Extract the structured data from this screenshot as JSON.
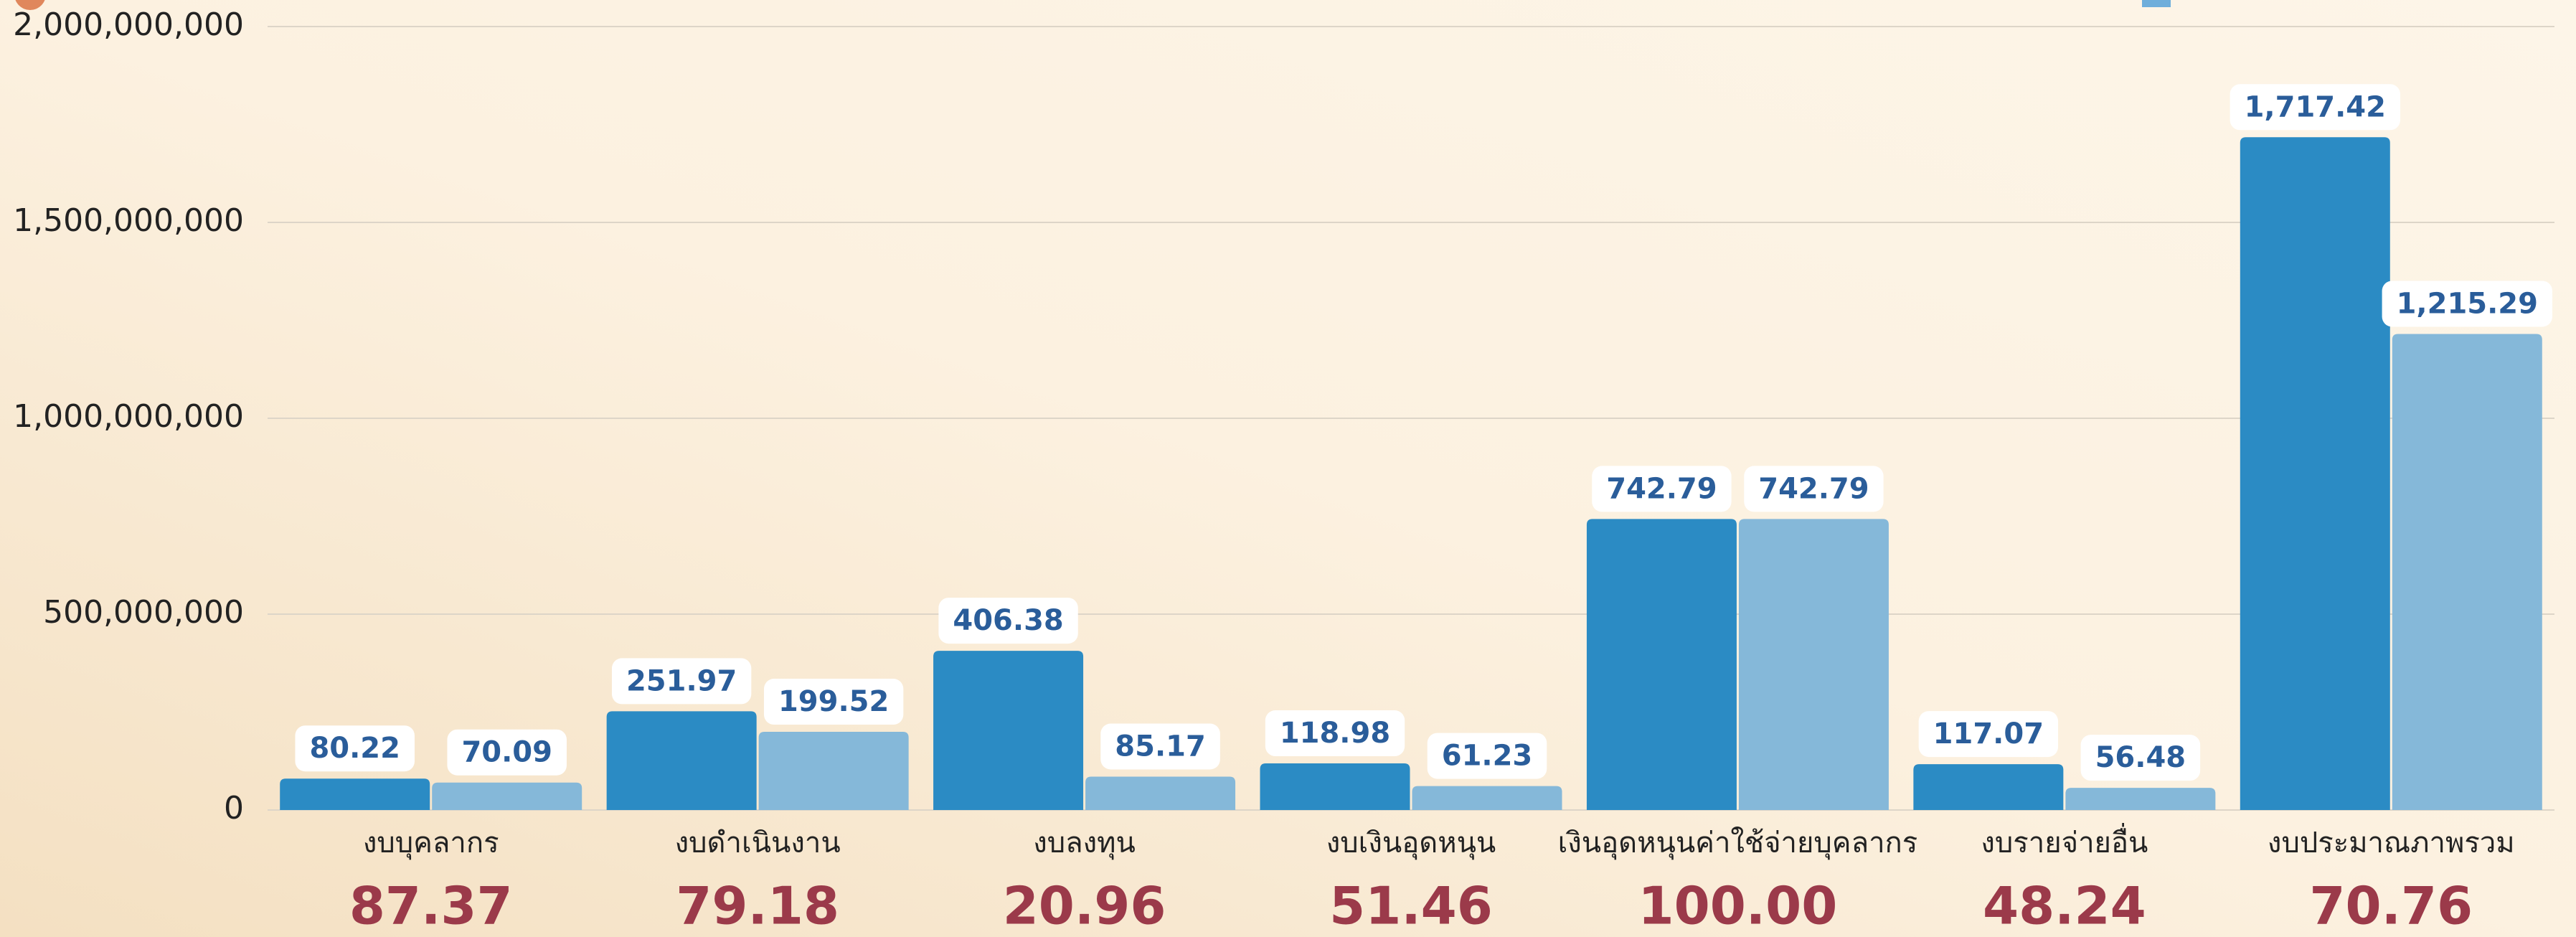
{
  "chart_data": {
    "type": "bar",
    "categories": [
      "งบบุคลากร",
      "งบดำเนินงาน",
      "งบลงทุน",
      "งบเงินอุดหนุน",
      "เงินอุดหนุนค่าใช้จ่ายบุคลากร",
      "งบรายจ่ายอื่น",
      "งบประมาณภาพรวม"
    ],
    "series": [
      {
        "color": "#2b8bc4",
        "values": [
          80220000,
          251970000,
          406380000,
          118980000,
          742790000,
          117070000,
          1717420000
        ],
        "value_labels": [
          "80.22",
          "251.97",
          "406.38",
          "118.98",
          "742.79",
          "117.07",
          "1,717.42"
        ]
      },
      {
        "color": "#85b8d9",
        "values": [
          70090000,
          199520000,
          85170000,
          61230000,
          742790000,
          56480000,
          1215290000
        ],
        "value_labels": [
          "70.09",
          "199.52",
          "85.17",
          "61.23",
          "742.79",
          "56.48",
          "1,215.29"
        ]
      }
    ],
    "annotations": [
      "87.37",
      "79.18",
      "20.96",
      "51.46",
      "100.00",
      "48.24",
      "70.76"
    ],
    "ylim": [
      0,
      2000000000
    ],
    "yticks": [
      0,
      {
        "value": 500000000,
        "label": "500,000,000"
      },
      {
        "value": 1000000000,
        "label": "1,000,000,000"
      },
      {
        "value": 1500000000,
        "label": "1,500,000,000"
      },
      {
        "value": 2000000000,
        "label": "2,000,000,000"
      }
    ],
    "grid": true
  }
}
